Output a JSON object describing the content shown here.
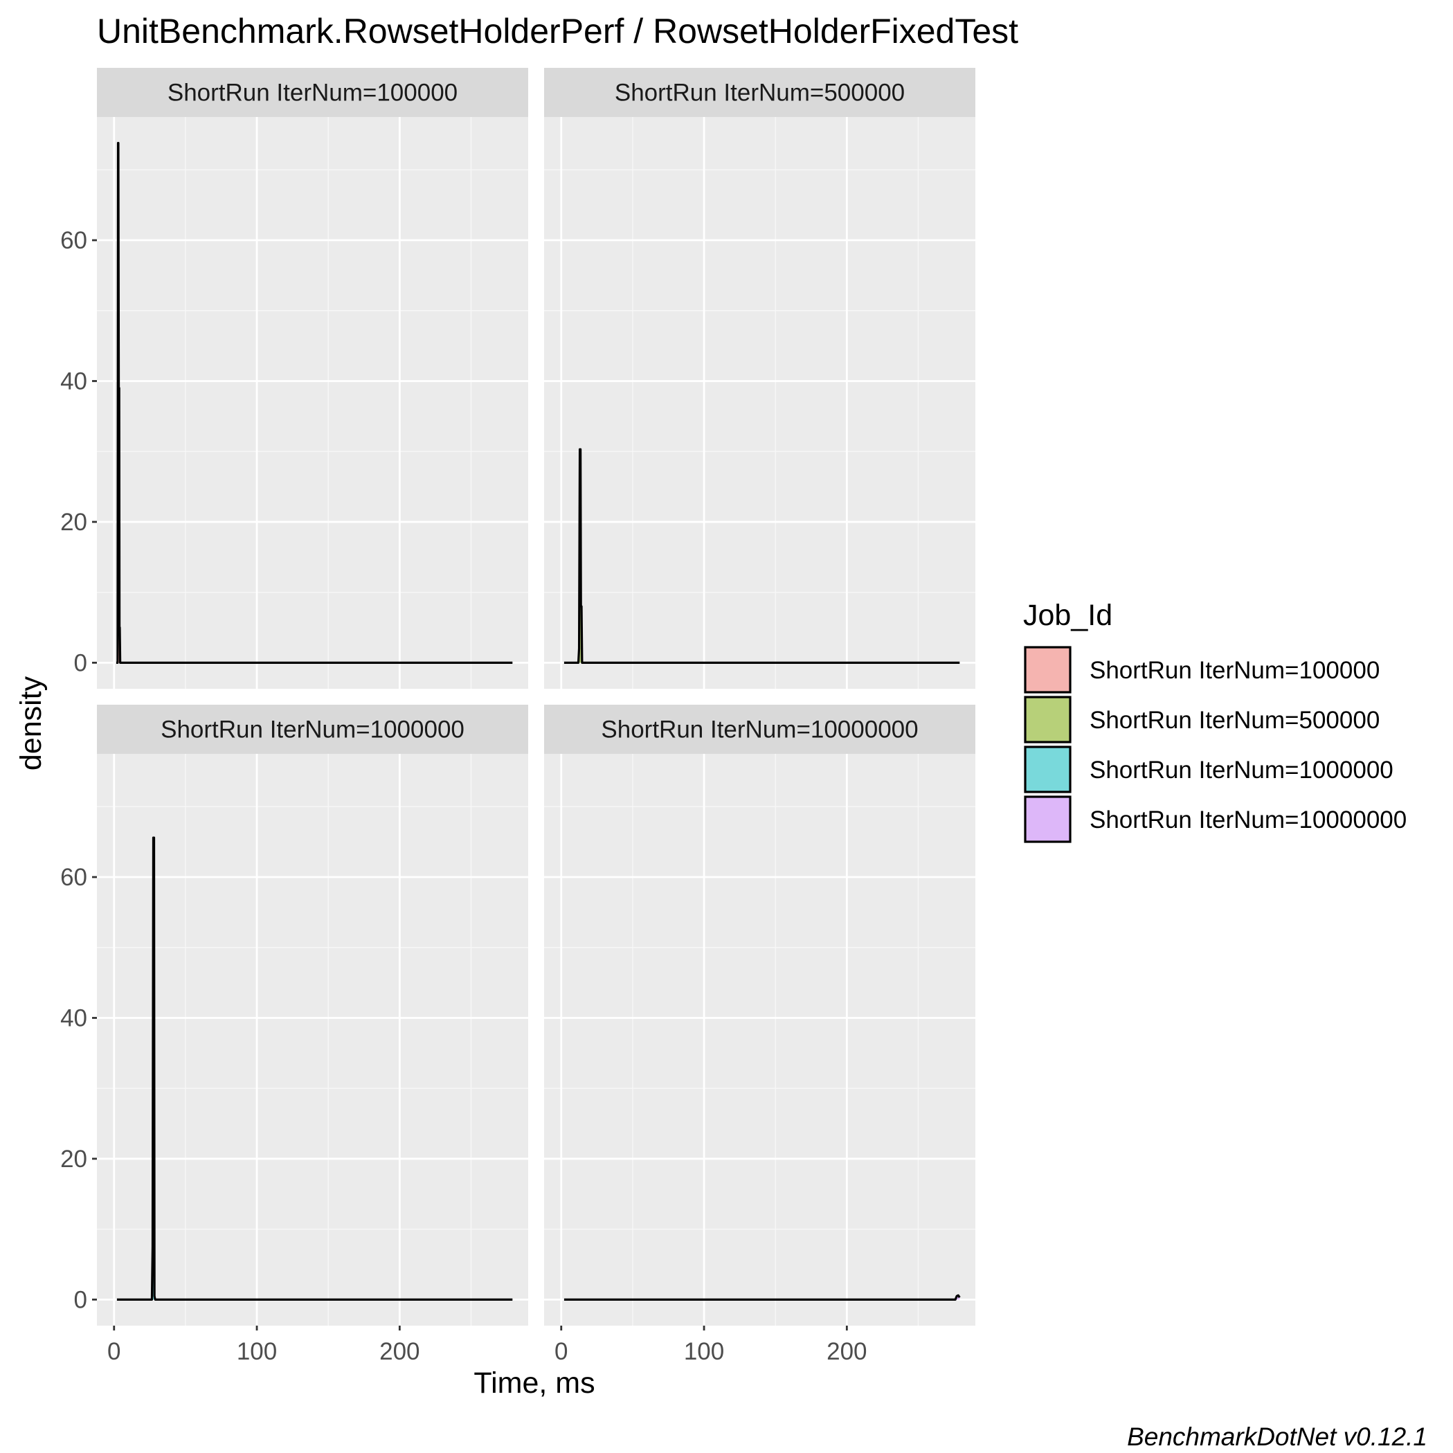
{
  "chart_data": {
    "type": "area",
    "title": "UnitBenchmark.RowsetHolderPerf / RowsetHolderFixedTest",
    "xlabel": "Time, ms",
    "ylabel": "density",
    "caption": "BenchmarkDotNet v0.12.1",
    "xlim": [
      -12,
      290
    ],
    "ylim": [
      -3.7,
      77.5
    ],
    "x_ticks": [
      0,
      100,
      200
    ],
    "x_tick_labels": [
      "0",
      "100",
      "200"
    ],
    "y_ticks": [
      0,
      20,
      40,
      60
    ],
    "y_tick_labels": [
      "0",
      "20",
      "40",
      "60"
    ],
    "grid": true,
    "legend": {
      "title": "Job_Id",
      "position": "right",
      "entries": [
        {
          "label": "ShortRun IterNum=100000",
          "color": "#F8766D"
        },
        {
          "label": "ShortRun IterNum=500000",
          "color": "#7CAE00"
        },
        {
          "label": "ShortRun IterNum=1000000",
          "color": "#00BFC4"
        },
        {
          "label": "ShortRun IterNum=10000000",
          "color": "#C77CFF"
        }
      ]
    },
    "panels": [
      {
        "strip": "ShortRun IterNum=100000",
        "series": {
          "name": "ShortRun IterNum=100000",
          "x": [
            1.5,
            2.5,
            2.8,
            3.0,
            3.3,
            3.6,
            3.8,
            4.0,
            4.3,
            5.0,
            279
          ],
          "y": [
            0,
            0,
            73.8,
            73.8,
            39.0,
            39.0,
            5.0,
            5.0,
            0,
            0,
            0
          ]
        }
      },
      {
        "strip": "ShortRun IterNum=500000",
        "series": {
          "name": "ShortRun IterNum=500000",
          "x": [
            2,
            12.0,
            12.5,
            13.0,
            13.5,
            13.8,
            14.2,
            14.6,
            279
          ],
          "y": [
            0,
            0,
            2.0,
            30.3,
            30.3,
            8.0,
            8.0,
            0,
            0
          ]
        }
      },
      {
        "strip": "ShortRun IterNum=1000000",
        "series": {
          "name": "ShortRun IterNum=1000000",
          "x": [
            2,
            26.5,
            27.0,
            27.5,
            28.0,
            28.3,
            28.8,
            279
          ],
          "y": [
            0,
            0,
            7.5,
            65.6,
            65.6,
            0.5,
            0,
            0
          ]
        }
      },
      {
        "strip": "ShortRun IterNum=10000000",
        "series": {
          "name": "ShortRun IterNum=10000000",
          "x": [
            2,
            276,
            277,
            278,
            279
          ],
          "y": [
            0,
            0,
            0.5,
            0.6,
            0.3
          ]
        }
      }
    ]
  }
}
